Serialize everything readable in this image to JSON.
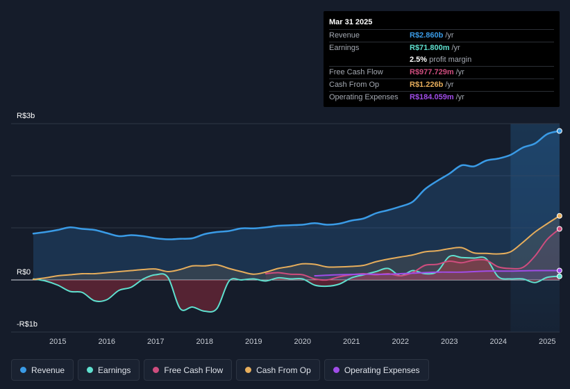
{
  "tooltip": {
    "date": "Mar 31 2025",
    "rows": {
      "revenue": {
        "label": "Revenue",
        "value": "R$2.860b",
        "unit": "/yr"
      },
      "earnings": {
        "label": "Earnings",
        "value": "R$71.800m",
        "unit": "/yr"
      },
      "margin": {
        "value": "2.5%",
        "text": "profit margin"
      },
      "fcf": {
        "label": "Free Cash Flow",
        "value": "R$977.729m",
        "unit": "/yr"
      },
      "cfo": {
        "label": "Cash From Op",
        "value": "R$1.226b",
        "unit": "/yr"
      },
      "opex": {
        "label": "Operating Expenses",
        "value": "R$184.059m",
        "unit": "/yr"
      }
    }
  },
  "legend": {
    "revenue": "Revenue",
    "earnings": "Earnings",
    "fcf": "Free Cash Flow",
    "cfo": "Cash From Op",
    "opex": "Operating Expenses"
  },
  "colors": {
    "revenue": "#3a9be6",
    "earnings": "#5fe0cf",
    "fcf": "#cf4d7e",
    "cfo": "#e7ae5c",
    "opex": "#a04de8"
  },
  "chart_data": {
    "type": "line",
    "y_unit": "R$ billions",
    "ylim": [
      -1,
      3
    ],
    "y_ticks": [
      {
        "value": 3,
        "label": "R$3b"
      },
      {
        "value": 0,
        "label": "R$0"
      },
      {
        "value": -1,
        "label": "-R$1b"
      }
    ],
    "x_ticks": [
      "2015",
      "2016",
      "2017",
      "2018",
      "2019",
      "2020",
      "2021",
      "2022",
      "2023",
      "2024",
      "2025"
    ],
    "xlim": [
      2014.5,
      2025.25
    ],
    "highlight_from": 2024.25,
    "series": [
      {
        "key": "revenue",
        "name": "Revenue",
        "points": [
          [
            2014.5,
            0.89
          ],
          [
            2014.75,
            0.92
          ],
          [
            2015.0,
            0.96
          ],
          [
            2015.25,
            1.01
          ],
          [
            2015.5,
            0.98
          ],
          [
            2015.75,
            0.96
          ],
          [
            2016.0,
            0.9
          ],
          [
            2016.25,
            0.84
          ],
          [
            2016.5,
            0.86
          ],
          [
            2016.75,
            0.84
          ],
          [
            2017.0,
            0.8
          ],
          [
            2017.25,
            0.78
          ],
          [
            2017.5,
            0.79
          ],
          [
            2017.75,
            0.8
          ],
          [
            2018.0,
            0.88
          ],
          [
            2018.25,
            0.92
          ],
          [
            2018.5,
            0.94
          ],
          [
            2018.75,
            0.99
          ],
          [
            2019.0,
            0.99
          ],
          [
            2019.25,
            1.01
          ],
          [
            2019.5,
            1.04
          ],
          [
            2019.75,
            1.05
          ],
          [
            2020.0,
            1.06
          ],
          [
            2020.25,
            1.09
          ],
          [
            2020.5,
            1.06
          ],
          [
            2020.75,
            1.08
          ],
          [
            2021.0,
            1.14
          ],
          [
            2021.25,
            1.18
          ],
          [
            2021.5,
            1.28
          ],
          [
            2021.75,
            1.34
          ],
          [
            2022.0,
            1.41
          ],
          [
            2022.25,
            1.5
          ],
          [
            2022.5,
            1.74
          ],
          [
            2022.75,
            1.9
          ],
          [
            2023.0,
            2.04
          ],
          [
            2023.25,
            2.2
          ],
          [
            2023.5,
            2.18
          ],
          [
            2023.75,
            2.29
          ],
          [
            2024.0,
            2.33
          ],
          [
            2024.25,
            2.4
          ],
          [
            2024.5,
            2.54
          ],
          [
            2024.75,
            2.62
          ],
          [
            2025.0,
            2.8
          ],
          [
            2025.25,
            2.86
          ]
        ]
      },
      {
        "key": "earnings",
        "name": "Earnings",
        "points": [
          [
            2014.5,
            0.02
          ],
          [
            2014.75,
            -0.02
          ],
          [
            2015.0,
            -0.1
          ],
          [
            2015.25,
            -0.22
          ],
          [
            2015.5,
            -0.24
          ],
          [
            2015.75,
            -0.4
          ],
          [
            2016.0,
            -0.38
          ],
          [
            2016.25,
            -0.2
          ],
          [
            2016.5,
            -0.14
          ],
          [
            2016.75,
            0.02
          ],
          [
            2017.0,
            0.1
          ],
          [
            2017.25,
            0.05
          ],
          [
            2017.5,
            -0.55
          ],
          [
            2017.75,
            -0.52
          ],
          [
            2018.0,
            -0.6
          ],
          [
            2018.25,
            -0.55
          ],
          [
            2018.5,
            -0.02
          ],
          [
            2018.75,
            0.0
          ],
          [
            2019.0,
            0.02
          ],
          [
            2019.25,
            -0.02
          ],
          [
            2019.5,
            0.04
          ],
          [
            2019.75,
            0.02
          ],
          [
            2020.0,
            0.02
          ],
          [
            2020.25,
            -0.1
          ],
          [
            2020.5,
            -0.12
          ],
          [
            2020.75,
            -0.08
          ],
          [
            2021.0,
            0.04
          ],
          [
            2021.25,
            0.1
          ],
          [
            2021.5,
            0.16
          ],
          [
            2021.75,
            0.22
          ],
          [
            2022.0,
            0.08
          ],
          [
            2022.25,
            0.18
          ],
          [
            2022.5,
            0.12
          ],
          [
            2022.75,
            0.16
          ],
          [
            2023.0,
            0.45
          ],
          [
            2023.25,
            0.43
          ],
          [
            2023.5,
            0.42
          ],
          [
            2023.75,
            0.41
          ],
          [
            2024.0,
            0.06
          ],
          [
            2024.25,
            0.02
          ],
          [
            2024.5,
            0.02
          ],
          [
            2024.75,
            -0.05
          ],
          [
            2025.0,
            0.05
          ],
          [
            2025.25,
            0.07
          ]
        ]
      },
      {
        "key": "fcf",
        "name": "Free Cash Flow",
        "points": [
          [
            2019.25,
            0.12
          ],
          [
            2019.5,
            0.14
          ],
          [
            2019.75,
            0.11
          ],
          [
            2020.0,
            0.1
          ],
          [
            2020.25,
            0.02
          ],
          [
            2020.5,
            0.0
          ],
          [
            2020.75,
            0.06
          ],
          [
            2021.0,
            0.1
          ],
          [
            2021.25,
            0.12
          ],
          [
            2021.5,
            0.1
          ],
          [
            2021.75,
            0.12
          ],
          [
            2022.0,
            0.08
          ],
          [
            2022.25,
            0.14
          ],
          [
            2022.5,
            0.28
          ],
          [
            2022.75,
            0.3
          ],
          [
            2023.0,
            0.36
          ],
          [
            2023.25,
            0.33
          ],
          [
            2023.5,
            0.38
          ],
          [
            2023.75,
            0.38
          ],
          [
            2024.0,
            0.25
          ],
          [
            2024.25,
            0.22
          ],
          [
            2024.5,
            0.24
          ],
          [
            2024.75,
            0.46
          ],
          [
            2025.0,
            0.78
          ],
          [
            2025.25,
            0.98
          ]
        ]
      },
      {
        "key": "cfo",
        "name": "Cash From Op",
        "points": [
          [
            2014.5,
            0.01
          ],
          [
            2014.75,
            0.04
          ],
          [
            2015.0,
            0.08
          ],
          [
            2015.25,
            0.1
          ],
          [
            2015.5,
            0.12
          ],
          [
            2015.75,
            0.12
          ],
          [
            2016.0,
            0.14
          ],
          [
            2016.25,
            0.16
          ],
          [
            2016.5,
            0.18
          ],
          [
            2016.75,
            0.2
          ],
          [
            2017.0,
            0.21
          ],
          [
            2017.25,
            0.16
          ],
          [
            2017.5,
            0.2
          ],
          [
            2017.75,
            0.27
          ],
          [
            2018.0,
            0.27
          ],
          [
            2018.25,
            0.29
          ],
          [
            2018.5,
            0.22
          ],
          [
            2018.75,
            0.16
          ],
          [
            2019.0,
            0.11
          ],
          [
            2019.25,
            0.15
          ],
          [
            2019.5,
            0.22
          ],
          [
            2019.75,
            0.26
          ],
          [
            2020.0,
            0.31
          ],
          [
            2020.25,
            0.3
          ],
          [
            2020.5,
            0.25
          ],
          [
            2020.75,
            0.25
          ],
          [
            2021.0,
            0.26
          ],
          [
            2021.25,
            0.28
          ],
          [
            2021.5,
            0.35
          ],
          [
            2021.75,
            0.4
          ],
          [
            2022.0,
            0.44
          ],
          [
            2022.25,
            0.48
          ],
          [
            2022.5,
            0.54
          ],
          [
            2022.75,
            0.56
          ],
          [
            2023.0,
            0.6
          ],
          [
            2023.25,
            0.62
          ],
          [
            2023.5,
            0.52
          ],
          [
            2023.75,
            0.51
          ],
          [
            2024.0,
            0.5
          ],
          [
            2024.25,
            0.54
          ],
          [
            2024.5,
            0.72
          ],
          [
            2024.75,
            0.92
          ],
          [
            2025.0,
            1.08
          ],
          [
            2025.25,
            1.23
          ]
        ]
      },
      {
        "key": "opex",
        "name": "Operating Expenses",
        "points": [
          [
            2020.25,
            0.08
          ],
          [
            2020.75,
            0.1
          ],
          [
            2021.25,
            0.11
          ],
          [
            2021.75,
            0.11
          ],
          [
            2022.25,
            0.13
          ],
          [
            2022.75,
            0.15
          ],
          [
            2023.25,
            0.15
          ],
          [
            2023.75,
            0.17
          ],
          [
            2024.25,
            0.17
          ],
          [
            2024.75,
            0.18
          ],
          [
            2025.25,
            0.18
          ]
        ]
      }
    ]
  }
}
